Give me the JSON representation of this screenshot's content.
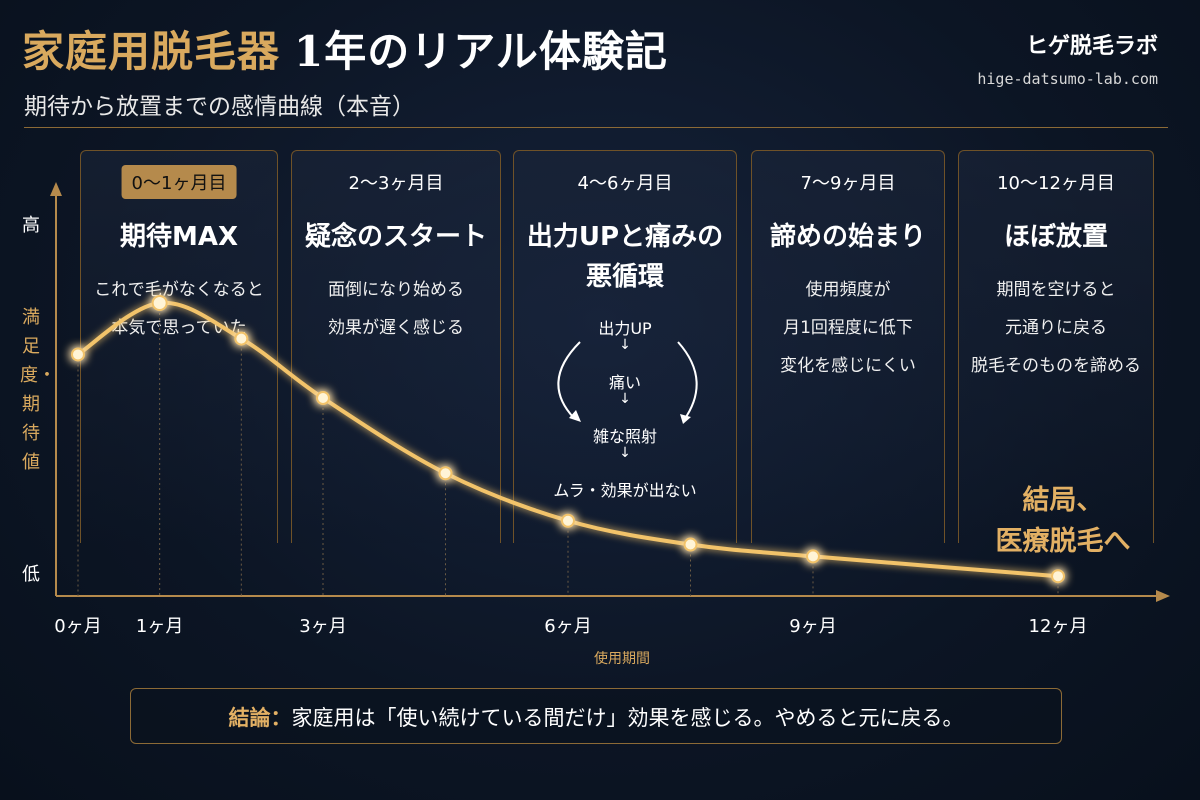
{
  "header": {
    "title_accent": "家庭用脱毛器",
    "title_rest": "1年のリアル体験記",
    "subtitle": "期待から放置までの感情曲線（本音）",
    "brand": "ヒゲ脱毛ラボ",
    "brand_url": "hige-datsumo-lab.com"
  },
  "phases": [
    {
      "period": "0〜1ヶ月目",
      "title": "期待MAX",
      "desc": [
        "これで毛がなくなると",
        "本気で思っていた"
      ]
    },
    {
      "period": "2〜3ヶ月目",
      "title": "疑念のスタート",
      "desc": [
        "面倒になり始める",
        "効果が遅く感じる"
      ]
    },
    {
      "period": "4〜6ヶ月目",
      "title": "出力UPと痛みの\n悪循環",
      "cycle": [
        "出力UP",
        "痛い",
        "雑な照射",
        "ムラ・効果が出ない"
      ]
    },
    {
      "period": "7〜9ヶ月目",
      "title": "諦めの始まり",
      "desc": [
        "使用頻度が",
        "月1回程度に低下",
        "変化を感じにくい"
      ]
    },
    {
      "period": "10〜12ヶ月目",
      "title": "ほぼ放置",
      "desc": [
        "期間を空けると",
        "元通りに戻る",
        "脱毛そのものを諦める"
      ]
    }
  ],
  "arrow_glyph": "↓",
  "chart_data": {
    "type": "line",
    "title": "期待から放置までの感情曲線（本音）",
    "xlabel": "使用期間",
    "ylabel": "満足度・期待値",
    "y_high_label": "高",
    "y_low_label": "低",
    "x_ticks": [
      "0ヶ月",
      "1ヶ月",
      "3ヶ月",
      "6ヶ月",
      "9ヶ月",
      "12ヶ月"
    ],
    "x_tick_values": [
      0,
      1,
      3,
      6,
      9,
      12
    ],
    "xlim": [
      0,
      13
    ],
    "ylim": [
      0,
      100
    ],
    "series": [
      {
        "x": [
          0,
          1,
          2,
          3,
          4.5,
          6,
          7.5,
          9,
          12
        ],
        "y": [
          61,
          74,
          65,
          50,
          31,
          19,
          13,
          10,
          5
        ]
      }
    ],
    "annotation": "結局、\n医療脱毛へ",
    "line_color": "#f2c36a",
    "accent_color": "#d9a95e"
  },
  "conclusion": {
    "label": "結論：",
    "text": "家庭用は「使い続けている間だけ」効果を感じる。やめると元に戻る。"
  }
}
